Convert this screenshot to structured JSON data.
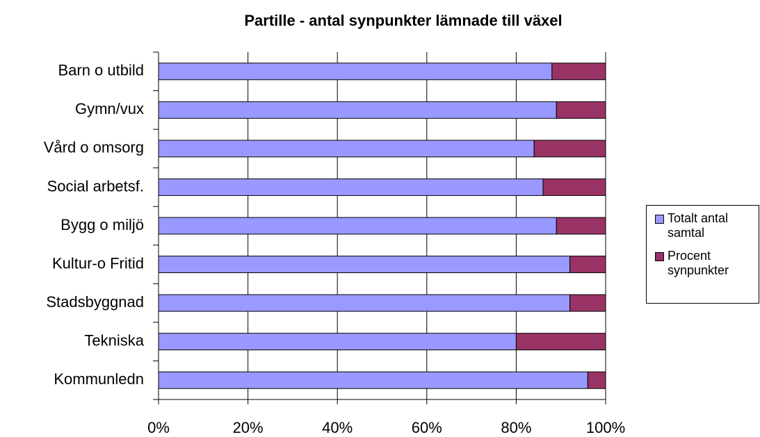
{
  "chart_data": {
    "type": "stacked_barh",
    "title": "Partille - antal synpunkter lämnade till växel",
    "categories": [
      "Barn o utbild",
      "Gymn/vux",
      "Vård o omsorg",
      "Social arbetsf.",
      "Bygg o miljö",
      "Kultur-o Fritid",
      "Stadsbyggnad",
      "Tekniska",
      "Kommunledn"
    ],
    "series": [
      {
        "name": "Totalt antal samtal",
        "color": "#9999ff",
        "values": [
          88,
          89,
          84,
          86,
          89,
          92,
          92,
          80,
          96
        ]
      },
      {
        "name": "Procent synpunkter",
        "color": "#993366",
        "values": [
          12,
          11,
          16,
          14,
          11,
          8,
          8,
          20,
          4
        ]
      }
    ],
    "xlim": [
      0,
      100
    ],
    "xticks": [
      {
        "value": 0,
        "label": "0%"
      },
      {
        "value": 20,
        "label": "20%"
      },
      {
        "value": 40,
        "label": "40%"
      },
      {
        "value": 60,
        "label": "60%"
      },
      {
        "value": 80,
        "label": "80%"
      },
      {
        "value": 100,
        "label": "100%"
      }
    ],
    "grid": true,
    "legend": "right"
  }
}
